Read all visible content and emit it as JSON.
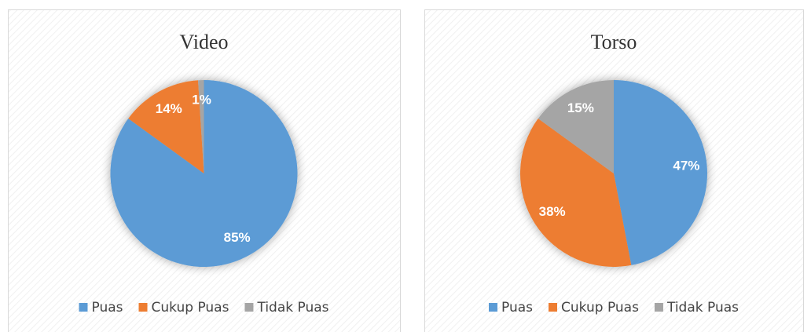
{
  "chart_data": [
    {
      "type": "pie",
      "title": "Video",
      "categories": [
        "Puas",
        "Cukup Puas",
        "Tidak Puas"
      ],
      "values": [
        85,
        14,
        1
      ],
      "value_labels": [
        "85%",
        "14%",
        "1%"
      ],
      "colors": [
        "#5b9bd5",
        "#ed7d31",
        "#a5a5a5"
      ],
      "legend": "bottom"
    },
    {
      "type": "pie",
      "title": "Torso",
      "categories": [
        "Puas",
        "Cukup Puas",
        "Tidak Puas"
      ],
      "values": [
        47,
        38,
        15
      ],
      "value_labels": [
        "47%",
        "38%",
        "15%"
      ],
      "colors": [
        "#5b9bd5",
        "#ed7d31",
        "#a5a5a5"
      ],
      "legend": "bottom"
    }
  ]
}
